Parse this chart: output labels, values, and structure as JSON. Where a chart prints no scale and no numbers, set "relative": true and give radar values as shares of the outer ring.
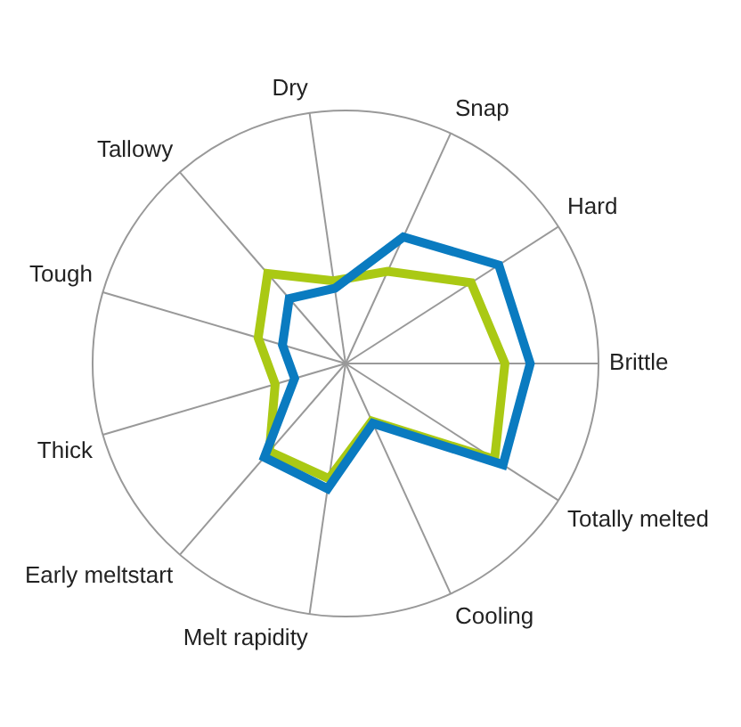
{
  "chart_data": {
    "type": "radar",
    "relative": true,
    "categories": [
      "Dry",
      "Snap",
      "Hard",
      "Brittle",
      "Totally melted",
      "Cooling",
      "Melt rapidity",
      "Early meltstart",
      "Thick",
      "Tough",
      "Tallowy"
    ],
    "series": [
      {
        "color": "#0a7bc0",
        "values": [
          0.3,
          0.55,
          0.72,
          0.73,
          0.74,
          0.26,
          0.5,
          0.49,
          0.21,
          0.26,
          0.34
        ]
      },
      {
        "color": "#aac914",
        "values": [
          0.33,
          0.4,
          0.59,
          0.63,
          0.7,
          0.25,
          0.46,
          0.46,
          0.29,
          0.36,
          0.47
        ]
      }
    ],
    "legend": false,
    "marker": "none"
  }
}
